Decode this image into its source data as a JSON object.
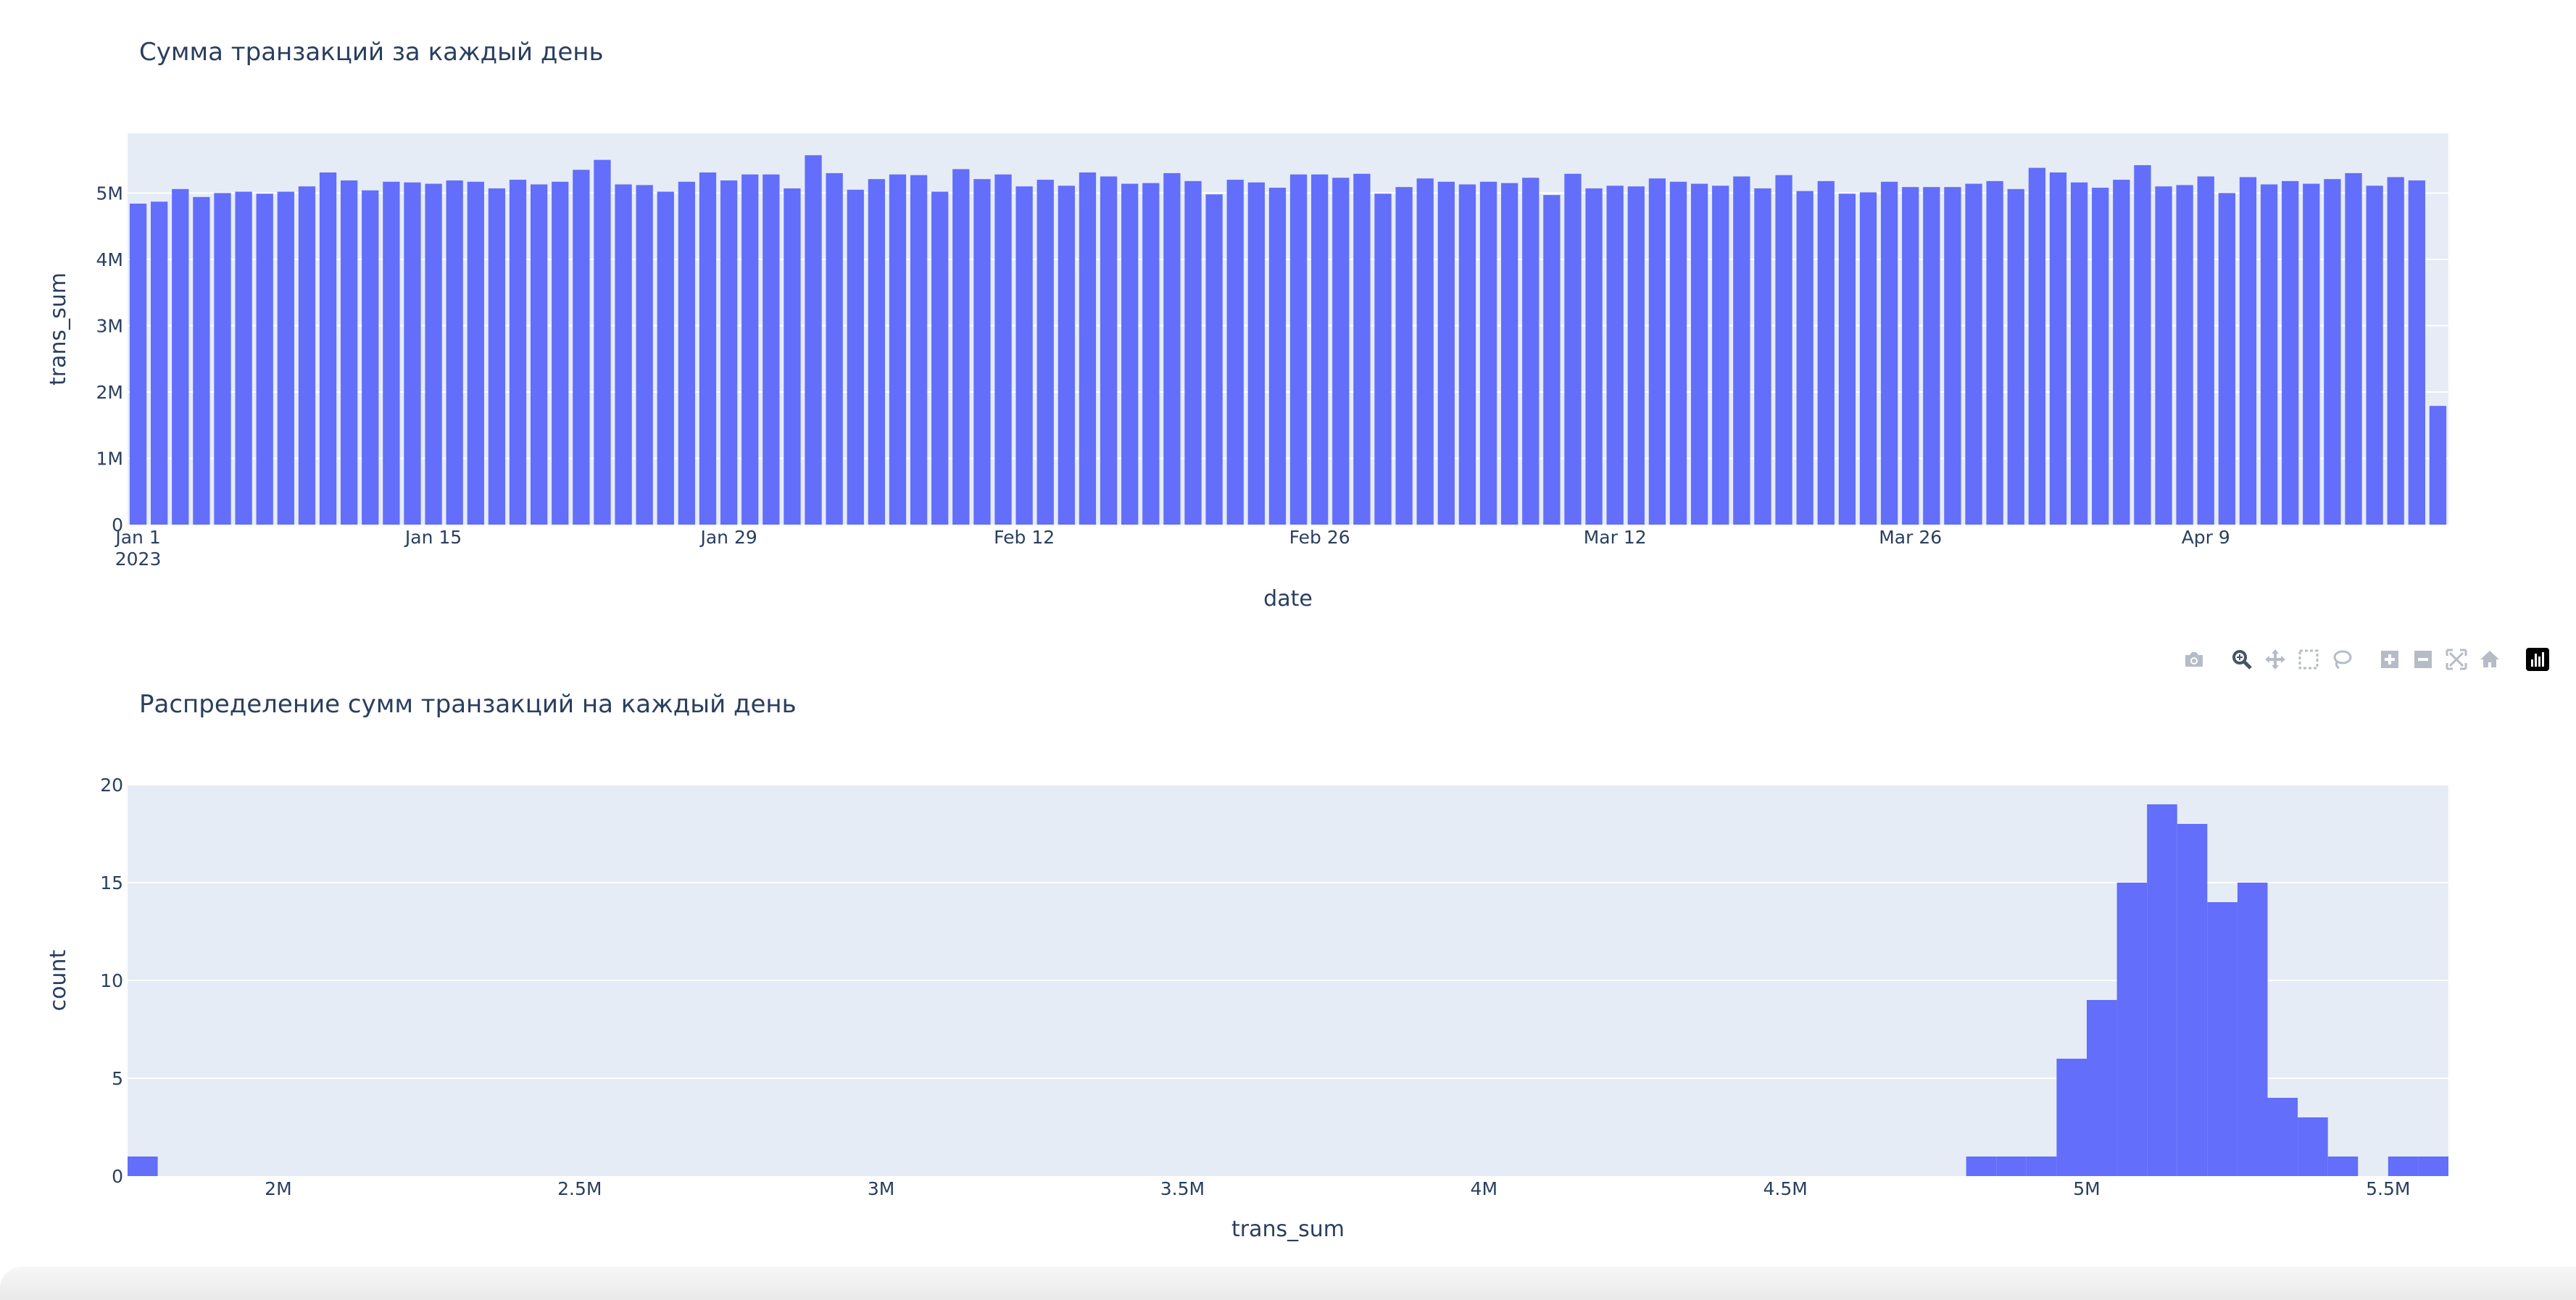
{
  "chart_data": [
    {
      "type": "bar",
      "title": "Сумма транзакций за каждый день",
      "xlabel": "date",
      "ylabel": "trans_sum",
      "x_start": "2023-01-01",
      "x_end": "2023-04-22",
      "ylim": [
        0,
        5900000
      ],
      "yticks": [
        0,
        1000000,
        2000000,
        3000000,
        4000000,
        5000000
      ],
      "ytick_labels": [
        "0",
        "1M",
        "2M",
        "3M",
        "4M",
        "5M"
      ],
      "xticks": [
        {
          "label": "Jan 1",
          "sublabel": "2023",
          "date": "2023-01-01"
        },
        {
          "label": "Jan 15",
          "date": "2023-01-15"
        },
        {
          "label": "Jan 29",
          "date": "2023-01-29"
        },
        {
          "label": "Feb 12",
          "date": "2023-02-12"
        },
        {
          "label": "Feb 26",
          "date": "2023-02-26"
        },
        {
          "label": "Mar 12",
          "date": "2023-03-12"
        },
        {
          "label": "Mar 26",
          "date": "2023-03-26"
        },
        {
          "label": "Apr 9",
          "date": "2023-04-09"
        }
      ],
      "values": [
        4840000,
        4870000,
        5060000,
        4940000,
        5000000,
        5020000,
        4990000,
        5020000,
        5100000,
        5310000,
        5190000,
        5040000,
        5170000,
        5160000,
        5140000,
        5190000,
        5170000,
        5070000,
        5200000,
        5130000,
        5170000,
        5350000,
        5500000,
        5130000,
        5120000,
        5020000,
        5170000,
        5310000,
        5190000,
        5280000,
        5280000,
        5070000,
        5570000,
        5300000,
        5050000,
        5210000,
        5280000,
        5270000,
        5020000,
        5360000,
        5210000,
        5280000,
        5100000,
        5200000,
        5110000,
        5310000,
        5250000,
        5140000,
        5150000,
        5300000,
        5180000,
        4980000,
        5200000,
        5160000,
        5080000,
        5280000,
        5280000,
        5230000,
        5290000,
        4990000,
        5090000,
        5220000,
        5170000,
        5130000,
        5170000,
        5150000,
        5230000,
        4970000,
        5290000,
        5070000,
        5110000,
        5100000,
        5220000,
        5170000,
        5140000,
        5110000,
        5250000,
        5070000,
        5270000,
        5030000,
        5180000,
        4990000,
        5010000,
        5170000,
        5090000,
        5090000,
        5090000,
        5140000,
        5180000,
        5060000,
        5380000,
        5310000,
        5160000,
        5080000,
        5200000,
        5420000,
        5100000,
        5120000,
        5250000,
        5000000,
        5240000,
        5130000,
        5180000,
        5140000,
        5210000,
        5300000,
        5110000,
        5240000,
        5190000,
        1790000
      ],
      "color": "#636efa"
    },
    {
      "type": "bar",
      "title": "Распределение сумм транзакций на каждый день",
      "xlabel": "trans_sum",
      "ylabel": "count",
      "xlim": [
        1750000,
        5600000
      ],
      "ylim": [
        0,
        20
      ],
      "bin_width": 50000,
      "xticks": [
        2000000,
        2500000,
        3000000,
        3500000,
        4000000,
        4500000,
        5000000,
        5500000
      ],
      "xtick_labels": [
        "2M",
        "2.5M",
        "3M",
        "3.5M",
        "4M",
        "4.5M",
        "5M",
        "5.5M"
      ],
      "yticks": [
        0,
        5,
        10,
        15,
        20
      ],
      "ytick_labels": [
        "0",
        "5",
        "10",
        "15",
        "20"
      ],
      "bins": [
        {
          "x0": 1750000,
          "count": 1
        },
        {
          "x0": 4800000,
          "count": 1
        },
        {
          "x0": 4850000,
          "count": 1
        },
        {
          "x0": 4900000,
          "count": 1
        },
        {
          "x0": 4950000,
          "count": 6
        },
        {
          "x0": 5000000,
          "count": 9
        },
        {
          "x0": 5050000,
          "count": 15
        },
        {
          "x0": 5100000,
          "count": 19
        },
        {
          "x0": 5150000,
          "count": 18
        },
        {
          "x0": 5200000,
          "count": 14
        },
        {
          "x0": 5250000,
          "count": 15
        },
        {
          "x0": 5300000,
          "count": 4
        },
        {
          "x0": 5350000,
          "count": 3
        },
        {
          "x0": 5400000,
          "count": 1
        },
        {
          "x0": 5500000,
          "count": 1
        },
        {
          "x0": 5550000,
          "count": 1
        }
      ],
      "color": "#636efa"
    }
  ],
  "style": {
    "plot_bg": "#e5ecf6",
    "grid": "#ffffff",
    "text": "#2a3f5f",
    "bar": "#636efa"
  },
  "modebar": {
    "icons": [
      "camera-icon",
      "zoom-icon",
      "pan-icon",
      "box-select-icon",
      "lasso-select-icon",
      "zoom-in-icon",
      "zoom-out-icon",
      "autoscale-icon",
      "reset-axes-icon",
      "plotly-logo-icon"
    ]
  }
}
